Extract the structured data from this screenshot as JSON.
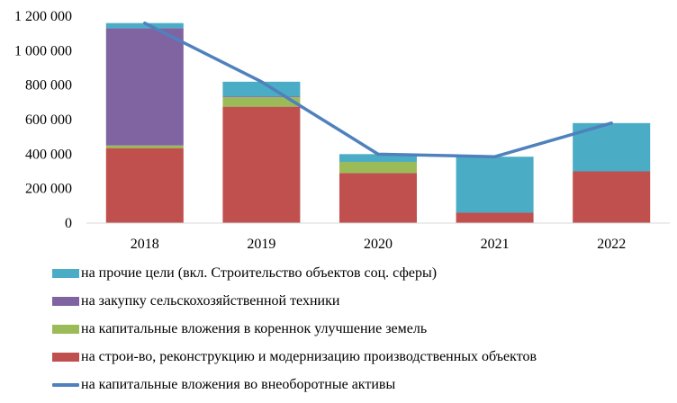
{
  "chart_data": {
    "type": "bar",
    "stacked": true,
    "categories": [
      "2018",
      "2019",
      "2020",
      "2021",
      "2022"
    ],
    "ylim": [
      0,
      1200000
    ],
    "yticks": [
      "0",
      "200 000",
      "400 000",
      "600 000",
      "800 000",
      "1 000 000",
      "1 200 000"
    ],
    "ytick_values": [
      0,
      200000,
      400000,
      600000,
      800000,
      1000000,
      1200000
    ],
    "grid": false,
    "legend_position": "bottom",
    "series": [
      {
        "name": "на строи-во, реконструкцию и модернизацию производственных объектов",
        "color": "#c0504d",
        "values": [
          435000,
          675000,
          290000,
          60000,
          300000
        ]
      },
      {
        "name": "на капитальные вложения в кореннок улучшение земель",
        "color": "#9bbb59",
        "values": [
          15000,
          55000,
          65000,
          0,
          0
        ]
      },
      {
        "name": "на закупку сельскохозяйственной техники",
        "color": "#8064a2",
        "values": [
          680000,
          5000,
          0,
          0,
          0
        ]
      },
      {
        "name": "на прочие цели (вкл. Строительство объектов соц. сферы)",
        "color": "#4bacc6",
        "values": [
          30000,
          85000,
          45000,
          325000,
          280000
        ]
      }
    ],
    "line": {
      "name": "на капитальные вложения во внеоборотные активы",
      "color": "#4f81bd",
      "values": [
        1160000,
        820000,
        400000,
        385000,
        580000
      ]
    }
  },
  "legend": {
    "items": [
      {
        "label": "на прочие цели (вкл. Строительство объектов соц. сферы)",
        "color": "#4bacc6",
        "kind": "box"
      },
      {
        "label": "на закупку сельскохозяйственной техники",
        "color": "#8064a2",
        "kind": "box"
      },
      {
        "label": "на капитальные вложения в кореннок улучшение земель",
        "color": "#9bbb59",
        "kind": "box"
      },
      {
        "label": "на строи-во, реконструкцию и модернизацию производственных объектов",
        "color": "#c0504d",
        "kind": "box"
      },
      {
        "label": "на капитальные вложения во внеоборотные активы",
        "color": "#4f81bd",
        "kind": "line"
      }
    ]
  }
}
